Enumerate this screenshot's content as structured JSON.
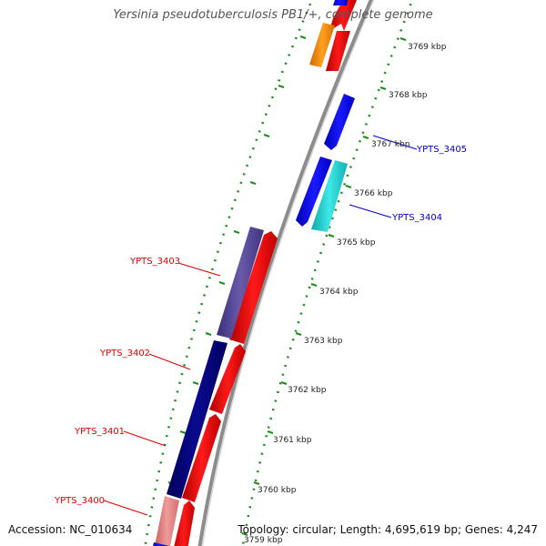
{
  "map": {
    "title": "Yersinia pseudotuberculosis PB1/+, complete genome",
    "accession": "Accession: NC_010634",
    "summary": "Topology: circular; Length: 4,695,619 bp; Genes: 4,247"
  },
  "ticks": [
    {
      "label": "3769 kbp",
      "kbp": 3769
    },
    {
      "label": "3768 kbp",
      "kbp": 3768
    },
    {
      "label": "3767 kbp",
      "kbp": 3767
    },
    {
      "label": "3766 kbp",
      "kbp": 3766
    },
    {
      "label": "3765 kbp",
      "kbp": 3765
    },
    {
      "label": "3764 kbp",
      "kbp": 3764
    },
    {
      "label": "3763 kbp",
      "kbp": 3763
    },
    {
      "label": "3762 kbp",
      "kbp": 3762
    },
    {
      "label": "3761 kbp",
      "kbp": 3761
    },
    {
      "label": "3760 kbp",
      "kbp": 3760
    },
    {
      "label": "3759 kbp",
      "kbp": 3759
    }
  ],
  "gene_labels": [
    {
      "name": "YPTS_3405",
      "color": "#0000cc"
    },
    {
      "name": "YPTS_3404",
      "color": "#0000cc"
    },
    {
      "name": "YPTS_3403",
      "color": "#dd0000"
    },
    {
      "name": "YPTS_3402",
      "color": "#dd0000"
    },
    {
      "name": "YPTS_3401",
      "color": "#dd0000"
    },
    {
      "name": "YPTS_3400",
      "color": "#dd0000"
    }
  ],
  "colors": {
    "backbone": "#8c8c8c",
    "tick_green": "#1a8c1a",
    "forward_gene": "#ff0000",
    "reverse_gene": "#0000ff",
    "orf_orange": "#ff8c00",
    "orf_cyan": "#20d0d0",
    "orf_purple": "#554499",
    "orf_navy": "#000080",
    "orf_pink": "#e88080"
  }
}
